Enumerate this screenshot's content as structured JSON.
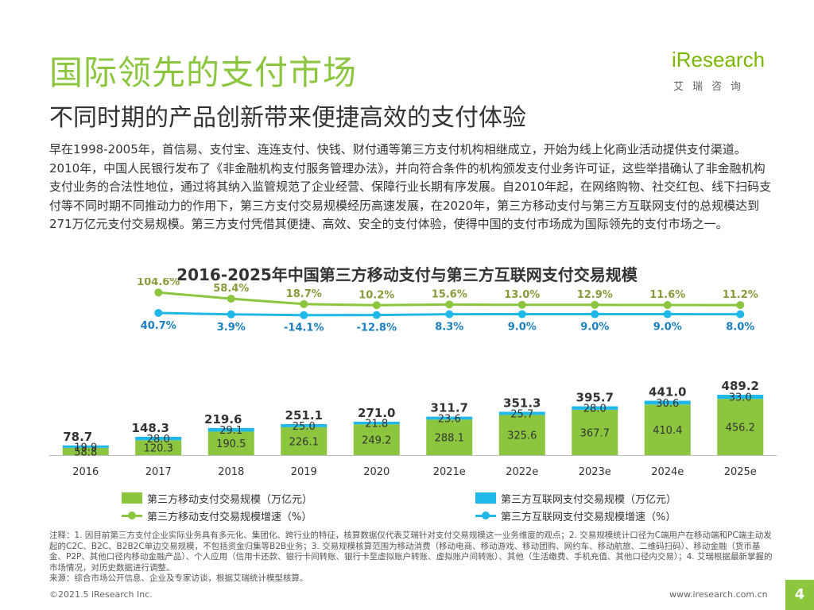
{
  "header": {
    "title": "国际领先的支付市场",
    "subtitle": "不同时期的产品创新带来便捷高效的支付体验",
    "logo_text": "iResearch",
    "logo_sub": "艾瑞咨询"
  },
  "intro_text": "早在1998-2005年，首信易、支付宝、连连支付、快钱、财付通等第三方支付机构相继成立，开始为线上化商业活动提供支付渠道。2010年，中国人民银行发布了《非金融机构支付服务管理办法》，并向符合条件的机构颁发支付业务许可证，这些举措确认了非金融机构支付业务的合法性地位，通过将其纳入监管规范了企业经营、保障行业长期有序发展。自2010年起，在网络购物、社交红包、线下扫码支付等不同时期不同推动力的作用下，第三方支付交易规模经历高速发展，在2020年，第三方移动支付与第三方互联网支付的总规模达到271万亿元支付交易规模。第三方支付凭借其便捷、高效、安全的支付体验，使得中国的支付市场成为国际领先的支付市场之一。",
  "chart_data": {
    "type": "bar",
    "stacked": true,
    "title": "2016-2025年中国第三方移动支付与第三方互联网支付交易规模",
    "categories": [
      "2016",
      "2017",
      "2018",
      "2019",
      "2020",
      "2021e",
      "2022e",
      "2023e",
      "2024e",
      "2025e"
    ],
    "totals": [
      "78.7",
      "148.3",
      "219.6",
      "251.1",
      "271.0",
      "311.7",
      "351.3",
      "395.7",
      "441.0",
      "489.2"
    ],
    "series": [
      {
        "name": "第三方移动支付交易规模（万亿元）",
        "kind": "bar",
        "color": "#8cc63f",
        "values": [
          58.8,
          120.3,
          190.5,
          226.1,
          249.2,
          288.1,
          325.6,
          367.7,
          410.4,
          456.2
        ],
        "labels": [
          "58.8",
          "120.3",
          "190.5",
          "226.1",
          "249.2",
          "288.1",
          "325.6",
          "367.7",
          "410.4",
          "456.2"
        ]
      },
      {
        "name": "第三方互联网支付交易规模（万亿元）",
        "kind": "bar",
        "color": "#1fb8e8",
        "values": [
          19.9,
          28.0,
          29.1,
          25.0,
          21.8,
          23.6,
          25.7,
          28.0,
          30.6,
          33.0
        ],
        "labels": [
          "19.9",
          "28.0",
          "29.1",
          "25.0",
          "21.8",
          "23.6",
          "25.7",
          "28.0",
          "30.6",
          "33.0"
        ]
      },
      {
        "name": "第三方移动支付交易规模增速（%）",
        "kind": "line",
        "color": "#8cc63f",
        "values": [
          null,
          104.6,
          58.4,
          18.7,
          10.2,
          15.6,
          13.0,
          12.9,
          11.6,
          11.2
        ],
        "labels": [
          "",
          "104.6%",
          "58.4%",
          "18.7%",
          "10.2%",
          "15.6%",
          "13.0%",
          "12.9%",
          "11.6%",
          "11.2%"
        ]
      },
      {
        "name": "第三方互联网支付交易规模增速（%）",
        "kind": "line",
        "color": "#1fb8e8",
        "values": [
          null,
          40.7,
          3.9,
          -14.1,
          -12.8,
          8.3,
          9.0,
          9.0,
          9.0,
          8.0
        ],
        "labels": [
          "",
          "40.7%",
          "3.9%",
          "-14.1%",
          "-12.8%",
          "8.3%",
          "9.0%",
          "9.0%",
          "9.0%",
          "8.0%"
        ]
      }
    ],
    "ylim": [
      0,
      500
    ]
  },
  "legend": {
    "mobile_bar": "第三方移动支付交易规模（万亿元）",
    "internet_bar": "第三方互联网支付交易规模（万亿元）",
    "mobile_growth": "第三方移动支付交易规模增速（%）",
    "internet_growth": "第三方互联网支付交易规模增速（%）"
  },
  "notes": "注释：1. 因目前第三方支付企业实际业务具有多元化、集团化、跨行业的特征，核算数据仅代表艾瑞针对支付交易规模这一业务维度的观点；2. 交易规模统计口径为C端用户在移动端和PC端主动发起的C2C、B2C、B2B2C单边交易规模，不包括资金归集等B2B业务；3. 交易规模核算范围为移动消费（移动电商、移动游戏、移动团购、网约车、移动航旅、二维码扫码）、移动金融（货币基金、P2P、其他口径内移动金融产品）、个人应用（信用卡还款、银行卡间转账、银行卡至虚拟账户转账、虚拟账户间转账）、其他（生活缴费、手机充值、其他口径内交易）；4. 艾瑞根据最新掌握的市场情况，对历史数据进行调整。",
  "source": "来源：综合市场公开信息、企业及专家访谈，根据艾瑞统计模型核算。",
  "footer": {
    "copyright": "©2021.5 iResearch Inc.",
    "website": "www.iresearch.com.cn",
    "page_number": "4"
  },
  "colors": {
    "accent_green": "#8cc63f",
    "accent_blue": "#1fb8e8"
  }
}
